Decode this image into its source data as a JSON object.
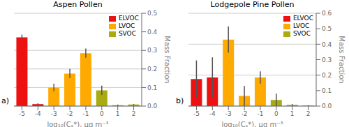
{
  "chart_data": [
    {
      "type": "bar",
      "title": "Aspen Pollen",
      "annotations": [
        "a)"
      ],
      "xlabel": "log₁₀(Cₛ*), μg m⁻³",
      "ylabel": "Mass Fraction",
      "categories": [
        "-5",
        "-4",
        "-3",
        "-2",
        "-1",
        "0",
        "1",
        "2"
      ],
      "values": [
        0.37,
        0.01,
        0.1,
        0.175,
        0.285,
        0.085,
        0.005,
        0.008
      ],
      "errors": [
        0.015,
        0.005,
        0.02,
        0.025,
        0.025,
        0.025,
        0.003,
        0.003
      ],
      "colors": [
        "#ee1111",
        "#dd1111",
        "#ffaa00",
        "#ffaa00",
        "#ffaa00",
        "#aaaa11",
        "#aaaa11",
        "#aaaa11"
      ],
      "ylim": [
        0,
        0.5
      ],
      "yticks": [
        {
          "value": 0,
          "label": "0.0"
        },
        0.1,
        0.2,
        0.3,
        0.4,
        0.5
      ],
      "grid": true,
      "legend": "upper right",
      "legend_entries": [
        {
          "name": "ELVOC",
          "color": "#ee1111"
        },
        {
          "name": "LVOC",
          "color": "#ffaa00"
        },
        {
          "name": "SVOC",
          "color": "#aaaa11"
        }
      ]
    },
    {
      "type": "bar",
      "title": "Lodgepole Pine Pollen",
      "annotations": [
        "b)"
      ],
      "xlabel": "log₁₀(Cₛ*), μg m⁻³",
      "ylabel": "Mass Fraction",
      "categories": [
        "-5",
        "-4",
        "-3",
        "-2",
        "-1",
        "0",
        "1",
        "2"
      ],
      "values": [
        0.175,
        0.185,
        0.43,
        0.065,
        0.185,
        0.04,
        0.008,
        0.003
      ],
      "errors": [
        0.12,
        0.13,
        0.085,
        0.065,
        0.04,
        0.04,
        0.005,
        0.003
      ],
      "colors": [
        "#ee1111",
        "#ee1111",
        "#ffaa00",
        "#ffaa00",
        "#ffaa00",
        "#aaaa11",
        "#aaaa11",
        "#aaaa11"
      ],
      "ylim": [
        0,
        0.6
      ],
      "yticks": [
        {
          "value": 0,
          "label": "0.0"
        },
        0.1,
        0.2,
        0.3,
        0.4,
        0.5,
        0.6
      ],
      "grid": true,
      "legend": "upper right",
      "legend_entries": [
        {
          "name": "ELVOC",
          "color": "#ee1111"
        },
        {
          "name": "LVOC",
          "color": "#ffaa00"
        },
        {
          "name": "SVOC",
          "color": "#aaaa11"
        }
      ]
    }
  ]
}
